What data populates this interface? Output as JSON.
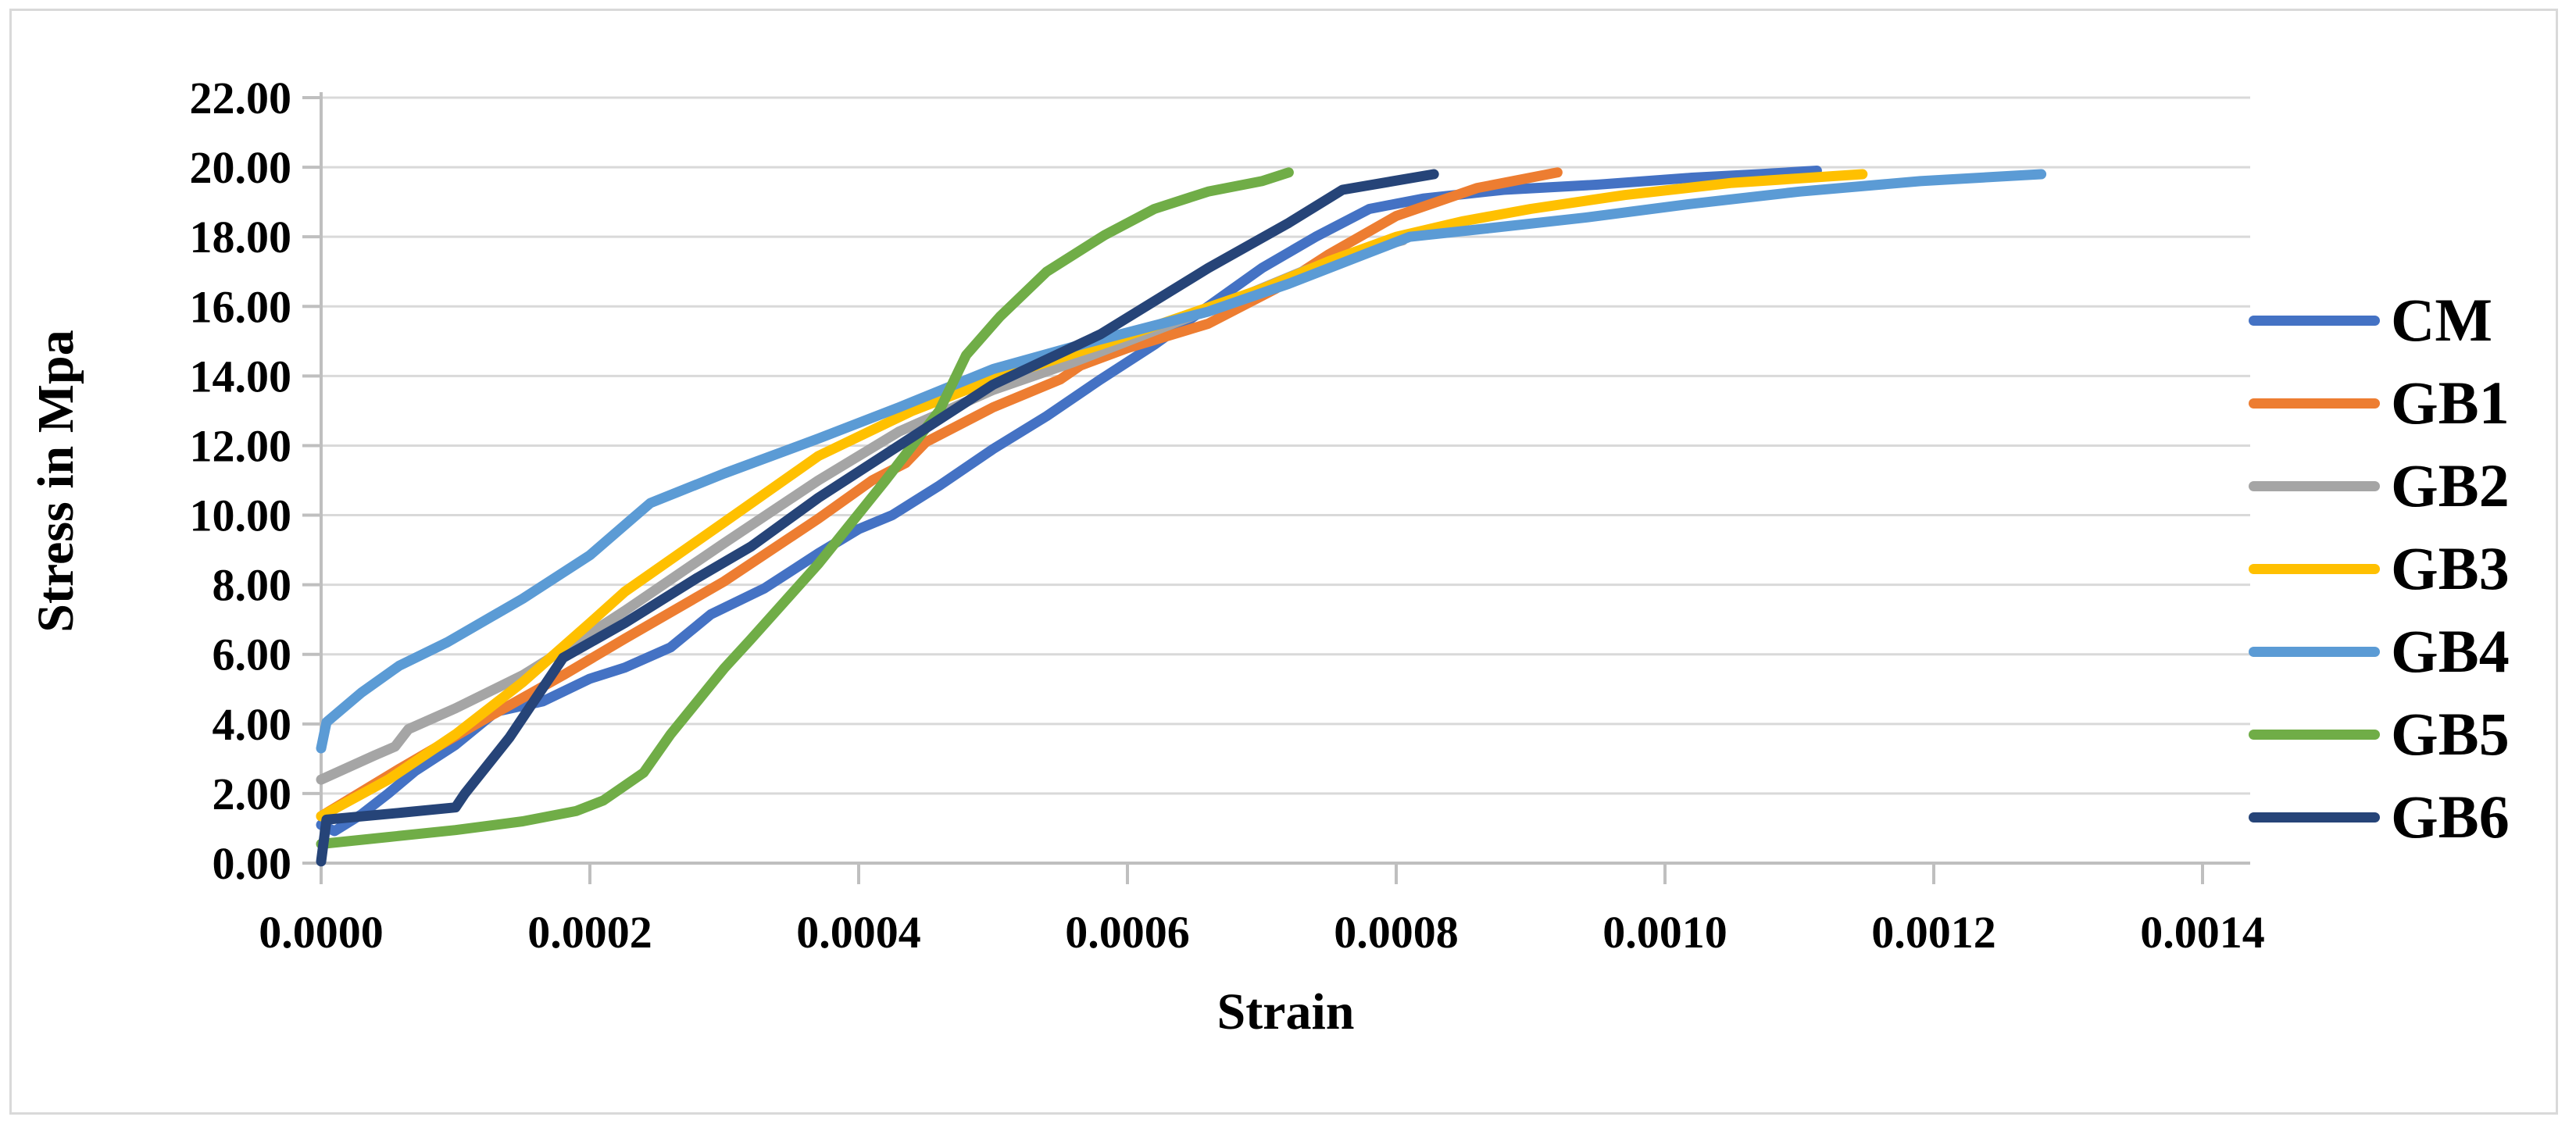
{
  "chart_data": {
    "type": "line",
    "title": "",
    "xlabel": "Strain",
    "ylabel": "Stress in Mpa",
    "xlim": [
      0,
      0.0014
    ],
    "ylim": [
      0,
      22
    ],
    "x_tick_labels": [
      "0.0000",
      "0.0002",
      "0.0004",
      "0.0006",
      "0.0008",
      "0.0010",
      "0.0012",
      "0.0014"
    ],
    "y_tick_labels": [
      "0.00",
      "2.00",
      "4.00",
      "6.00",
      "8.00",
      "10.00",
      "12.00",
      "14.00",
      "16.00",
      "18.00",
      "20.00",
      "22.00"
    ],
    "grid": "horizontal-only",
    "legend_position": "right-middle",
    "colors": {
      "grid": "#D9D9D9",
      "axis": "#BFBFBF",
      "frame": "#D9D9D9",
      "text": "#000000",
      "background": "#FFFFFF"
    },
    "series": [
      {
        "name": "CM",
        "color": "#4472C4",
        "points": [
          [
            0,
            1.1
          ],
          [
            1e-05,
            0.92
          ],
          [
            3e-05,
            1.4
          ],
          [
            5e-05,
            2.0
          ],
          [
            7e-05,
            2.65
          ],
          [
            0.0001,
            3.4
          ],
          [
            0.00013,
            4.35
          ],
          [
            0.000165,
            4.65
          ],
          [
            0.0002,
            5.3
          ],
          [
            0.000226,
            5.62
          ],
          [
            0.00026,
            6.2
          ],
          [
            0.00029,
            7.15
          ],
          [
            0.00033,
            7.9
          ],
          [
            0.00037,
            8.9
          ],
          [
            0.0004,
            9.6
          ],
          [
            0.000425,
            10.0
          ],
          [
            0.00046,
            10.85
          ],
          [
            0.0005,
            11.9
          ],
          [
            0.00054,
            12.85
          ],
          [
            0.00058,
            13.9
          ],
          [
            0.00062,
            14.9
          ],
          [
            0.00066,
            16.0
          ],
          [
            0.0007,
            17.1
          ],
          [
            0.00074,
            18.0
          ],
          [
            0.00078,
            18.8
          ],
          [
            0.00082,
            19.1
          ],
          [
            0.00088,
            19.35
          ],
          [
            0.00095,
            19.5
          ],
          [
            0.00102,
            19.7
          ],
          [
            0.00107,
            19.8
          ],
          [
            0.001113,
            19.9
          ]
        ]
      },
      {
        "name": "GB1",
        "color": "#ED7D31",
        "points": [
          [
            0,
            1.35
          ],
          [
            6e-05,
            2.75
          ],
          [
            0.00012,
            4.1
          ],
          [
            0.00018,
            5.4
          ],
          [
            0.000226,
            6.45
          ],
          [
            0.0003,
            8.1
          ],
          [
            0.00037,
            9.9
          ],
          [
            0.00041,
            11.0
          ],
          [
            0.000435,
            11.5
          ],
          [
            0.00045,
            12.1
          ],
          [
            0.0005,
            13.1
          ],
          [
            0.00055,
            13.9
          ],
          [
            0.000565,
            14.3
          ],
          [
            0.0006,
            14.8
          ],
          [
            0.00066,
            15.5
          ],
          [
            0.00071,
            16.5
          ],
          [
            0.00075,
            17.5
          ],
          [
            0.0008,
            18.6
          ],
          [
            0.00086,
            19.4
          ],
          [
            0.00092,
            19.85
          ]
        ]
      },
      {
        "name": "GB2",
        "color": "#A5A5A5",
        "points": [
          [
            0,
            2.4
          ],
          [
            4e-05,
            3.1
          ],
          [
            5.5e-05,
            3.35
          ],
          [
            6.5e-05,
            3.85
          ],
          [
            0.0001,
            4.45
          ],
          [
            0.00015,
            5.4
          ],
          [
            0.0002,
            6.6
          ],
          [
            0.000226,
            7.25
          ],
          [
            0.0003,
            9.2
          ],
          [
            0.00037,
            11.0
          ],
          [
            0.00043,
            12.4
          ],
          [
            0.0005,
            13.6
          ],
          [
            0.00056,
            14.4
          ],
          [
            0.00062,
            15.3
          ],
          [
            0.00068,
            16.2
          ],
          [
            0.00073,
            17.0
          ],
          [
            0.00078,
            17.65
          ],
          [
            0.000805,
            17.9
          ]
        ]
      },
      {
        "name": "GB3",
        "color": "#FFC000",
        "points": [
          [
            0,
            1.35
          ],
          [
            5e-05,
            2.4
          ],
          [
            0.0001,
            3.7
          ],
          [
            0.00015,
            5.2
          ],
          [
            0.0002,
            6.9
          ],
          [
            0.000226,
            7.8
          ],
          [
            0.0003,
            9.8
          ],
          [
            0.00037,
            11.7
          ],
          [
            0.00044,
            13.0
          ],
          [
            0.0005,
            13.9
          ],
          [
            0.00058,
            14.9
          ],
          [
            0.00064,
            15.7
          ],
          [
            0.0007,
            16.5
          ],
          [
            0.00075,
            17.3
          ],
          [
            0.0008,
            18.0
          ],
          [
            0.00085,
            18.45
          ],
          [
            0.0009,
            18.8
          ],
          [
            0.00097,
            19.2
          ],
          [
            0.00105,
            19.55
          ],
          [
            0.001147,
            19.8
          ]
        ]
      },
      {
        "name": "GB4",
        "color": "#5B9BD5",
        "points": [
          [
            0,
            3.3
          ],
          [
            4e-06,
            4.05
          ],
          [
            3e-05,
            4.9
          ],
          [
            5.8e-05,
            5.67
          ],
          [
            9.4e-05,
            6.35
          ],
          [
            0.00015,
            7.6
          ],
          [
            0.0002,
            8.85
          ],
          [
            0.00023,
            9.85
          ],
          [
            0.000245,
            10.35
          ],
          [
            0.0003,
            11.2
          ],
          [
            0.00037,
            12.2
          ],
          [
            0.00043,
            13.1
          ],
          [
            0.0005,
            14.2
          ],
          [
            0.00057,
            14.95
          ],
          [
            0.00066,
            15.85
          ],
          [
            0.00072,
            16.65
          ],
          [
            0.00078,
            17.55
          ],
          [
            0.00081,
            18.0
          ],
          [
            0.00087,
            18.25
          ],
          [
            0.00094,
            18.55
          ],
          [
            0.00102,
            18.95
          ],
          [
            0.0011,
            19.3
          ],
          [
            0.00119,
            19.6
          ],
          [
            0.00128,
            19.8
          ]
        ]
      },
      {
        "name": "GB5",
        "color": "#70AD47",
        "points": [
          [
            0,
            0.55
          ],
          [
            5e-05,
            0.75
          ],
          [
            0.0001,
            0.95
          ],
          [
            0.00015,
            1.2
          ],
          [
            0.00019,
            1.5
          ],
          [
            0.00021,
            1.8
          ],
          [
            0.00024,
            2.6
          ],
          [
            0.00026,
            3.7
          ],
          [
            0.0003,
            5.6
          ],
          [
            0.000319,
            6.4
          ],
          [
            0.00037,
            8.6
          ],
          [
            0.00042,
            11.0
          ],
          [
            0.00046,
            13.0
          ],
          [
            0.00048,
            14.6
          ],
          [
            0.000505,
            15.7
          ],
          [
            0.00054,
            17.0
          ],
          [
            0.000583,
            18.05
          ],
          [
            0.00062,
            18.8
          ],
          [
            0.00066,
            19.3
          ],
          [
            0.0007,
            19.6
          ],
          [
            0.00072,
            19.85
          ]
        ]
      },
      {
        "name": "GB6",
        "color": "#264478",
        "points": [
          [
            0,
            0.05
          ],
          [
            4e-06,
            1.25
          ],
          [
            6e-05,
            1.45
          ],
          [
            0.0001,
            1.6
          ],
          [
            0.000107,
            2.0
          ],
          [
            0.00014,
            3.6
          ],
          [
            0.00018,
            5.9
          ],
          [
            0.000226,
            6.9
          ],
          [
            0.00028,
            8.2
          ],
          [
            0.00032,
            9.1
          ],
          [
            0.00037,
            10.5
          ],
          [
            0.00043,
            12.0
          ],
          [
            0.0005,
            13.75
          ],
          [
            0.00058,
            15.2
          ],
          [
            0.00066,
            17.1
          ],
          [
            0.00072,
            18.4
          ],
          [
            0.00076,
            19.35
          ],
          [
            0.000828,
            19.8
          ]
        ]
      }
    ]
  }
}
